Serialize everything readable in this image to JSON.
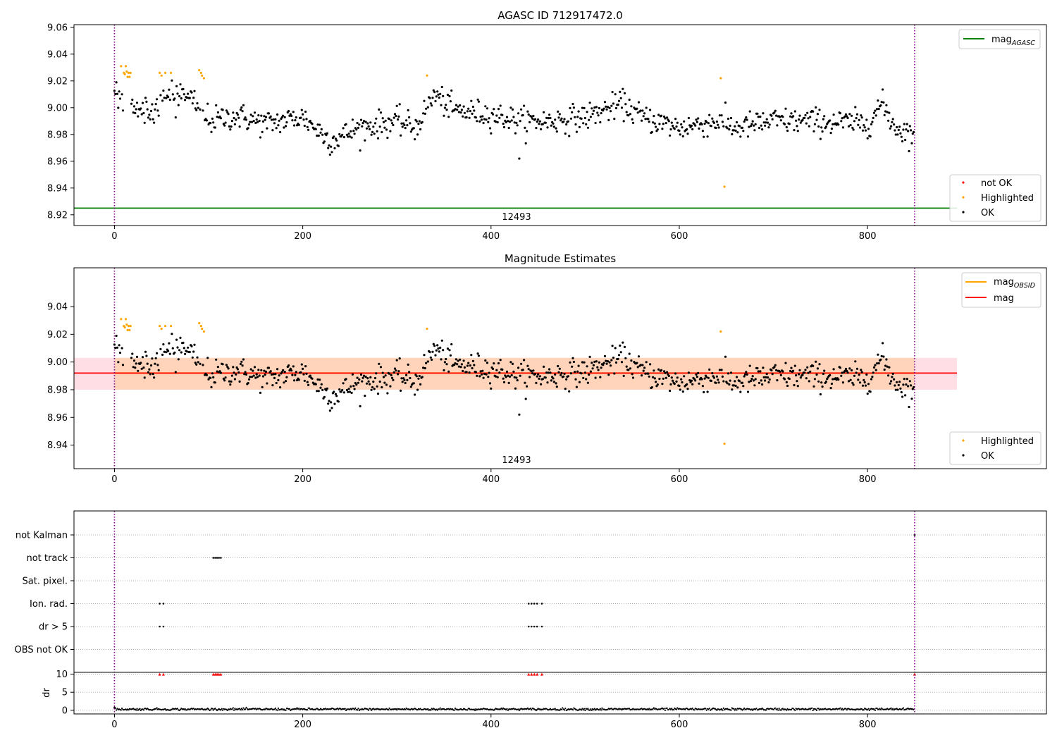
{
  "chart_data": [
    {
      "type": "scatter",
      "title": "AGASC ID 712917472.0",
      "xlabel": "",
      "ylabel": "",
      "xlim": [
        -43,
        990
      ],
      "ylim": [
        8.912,
        9.062
      ],
      "xticks": [
        0,
        200,
        400,
        600,
        800
      ],
      "yticks": [
        8.92,
        8.94,
        8.96,
        8.98,
        9.0,
        9.02,
        9.04,
        9.06
      ],
      "ytick_labels": [
        "8.92",
        "8.94",
        "8.96",
        "8.98",
        "9.00",
        "9.02",
        "9.04",
        "9.06"
      ],
      "xtick_labels": [
        "0",
        "200",
        "400",
        "600",
        "800"
      ],
      "vlines": [
        0,
        850
      ],
      "hline_mag_agasc": 8.925,
      "obsid_label": {
        "text": "12493",
        "x": 425
      },
      "legend_upper": [
        {
          "label": "mag",
          "sub": "AGASC",
          "color": "#008000"
        }
      ],
      "legend_lower": [
        {
          "label": "not OK",
          "color": "#ff0000"
        },
        {
          "label": "Highlighted",
          "color": "#ffa500"
        },
        {
          "label": "OK",
          "color": "#000000"
        }
      ],
      "series": [
        {
          "name": "OK",
          "color": "#000000",
          "n_points": 850,
          "mean_curve": {
            "x": [
              0,
              20,
              40,
              60,
              80,
              100,
              130,
              160,
              200,
              230,
              260,
              300,
              320,
              340,
              360,
              400,
              430,
              460,
              500,
              540,
              560,
              600,
              640,
              660,
              700,
              740,
              800,
              815,
              830,
              850
            ],
            "y": [
              9.015,
              9.0,
              8.997,
              9.013,
              9.01,
              8.99,
              8.994,
              8.988,
              8.993,
              8.975,
              8.985,
              8.99,
              8.985,
              9.01,
              8.998,
              8.995,
              8.99,
              8.99,
              8.993,
              9.003,
              8.993,
              8.985,
              8.99,
              8.985,
              8.99,
              8.99,
              8.988,
              9.003,
              8.985,
              8.98
            ]
          },
          "scatter": 0.007
        },
        {
          "name": "Highlighted",
          "color": "#ffa500",
          "x": [
            7,
            10,
            11,
            12,
            13,
            14,
            15,
            16,
            17,
            48,
            50,
            54,
            60,
            90,
            92,
            93,
            95,
            332,
            644,
            648
          ],
          "y": [
            9.031,
            9.026,
            9.025,
            9.031,
            9.027,
            9.023,
            9.026,
            9.023,
            9.026,
            9.026,
            9.024,
            9.026,
            9.026,
            9.028,
            9.026,
            9.024,
            9.022,
            9.024,
            9.022,
            8.941
          ]
        },
        {
          "name": "not OK",
          "color": "#ff0000",
          "x": [],
          "y": []
        }
      ]
    },
    {
      "type": "scatter",
      "title": "Magnitude Estimates",
      "xlabel": "",
      "ylabel": "",
      "xlim": [
        -43,
        990
      ],
      "ylim": [
        8.923,
        9.068
      ],
      "xticks": [
        0,
        200,
        400,
        600,
        800
      ],
      "yticks": [
        8.94,
        8.96,
        8.98,
        9.0,
        9.02,
        9.04
      ],
      "ytick_labels": [
        "8.94",
        "8.96",
        "8.98",
        "9.00",
        "9.02",
        "9.04"
      ],
      "xtick_labels": [
        "0",
        "200",
        "400",
        "600",
        "800"
      ],
      "vlines": [
        0,
        850
      ],
      "mag_obsid": {
        "value": 8.992,
        "band": [
          8.98,
          9.003
        ],
        "x_range": [
          0,
          850
        ]
      },
      "mag": {
        "value": 8.992,
        "band": [
          8.98,
          9.003
        ],
        "x_range": [
          -43,
          895
        ]
      },
      "obsid_label": {
        "text": "12493",
        "x": 425
      },
      "legend_upper": [
        {
          "label": "mag",
          "sub": "OBSID",
          "color": "#ffa500"
        },
        {
          "label": "mag",
          "sub": "",
          "color": "#ff0000"
        }
      ],
      "legend_lower": [
        {
          "label": "Highlighted",
          "color": "#ffa500"
        },
        {
          "label": "OK",
          "color": "#000000"
        }
      ]
    },
    {
      "type": "scatter",
      "title": "",
      "flag_rows": [
        "not Kalman",
        "not track",
        "Sat. pixel.",
        "Ion. rad.",
        "dr > 5",
        "OBS not OK"
      ],
      "flag_points": {
        "not Kalman": [
          850
        ],
        "not track": [
          105,
          107,
          109,
          111,
          113
        ],
        "Sat. pixel.": [],
        "Ion. rad.": [
          48,
          52,
          440,
          443,
          446,
          449,
          454
        ],
        "dr > 5": [
          48,
          52,
          440,
          443,
          446,
          449,
          454
        ],
        "OBS not OK": []
      },
      "dr_panel": {
        "ylabel": "dr",
        "yticks": [
          0,
          5,
          10
        ],
        "ytick_labels": [
          "0",
          "5",
          "10"
        ],
        "ylim": [
          -1,
          10.5
        ],
        "flagged_x": [
          48,
          52,
          105,
          107,
          109,
          111,
          113,
          440,
          443,
          446,
          449,
          454,
          850
        ],
        "flagged_value": 10,
        "typical_value": 0.3
      },
      "xlim": [
        -43,
        990
      ],
      "xticks": [
        0,
        200,
        400,
        600,
        800
      ],
      "xtick_labels": [
        "0",
        "200",
        "400",
        "600",
        "800"
      ],
      "vlines": [
        0,
        850
      ]
    }
  ]
}
